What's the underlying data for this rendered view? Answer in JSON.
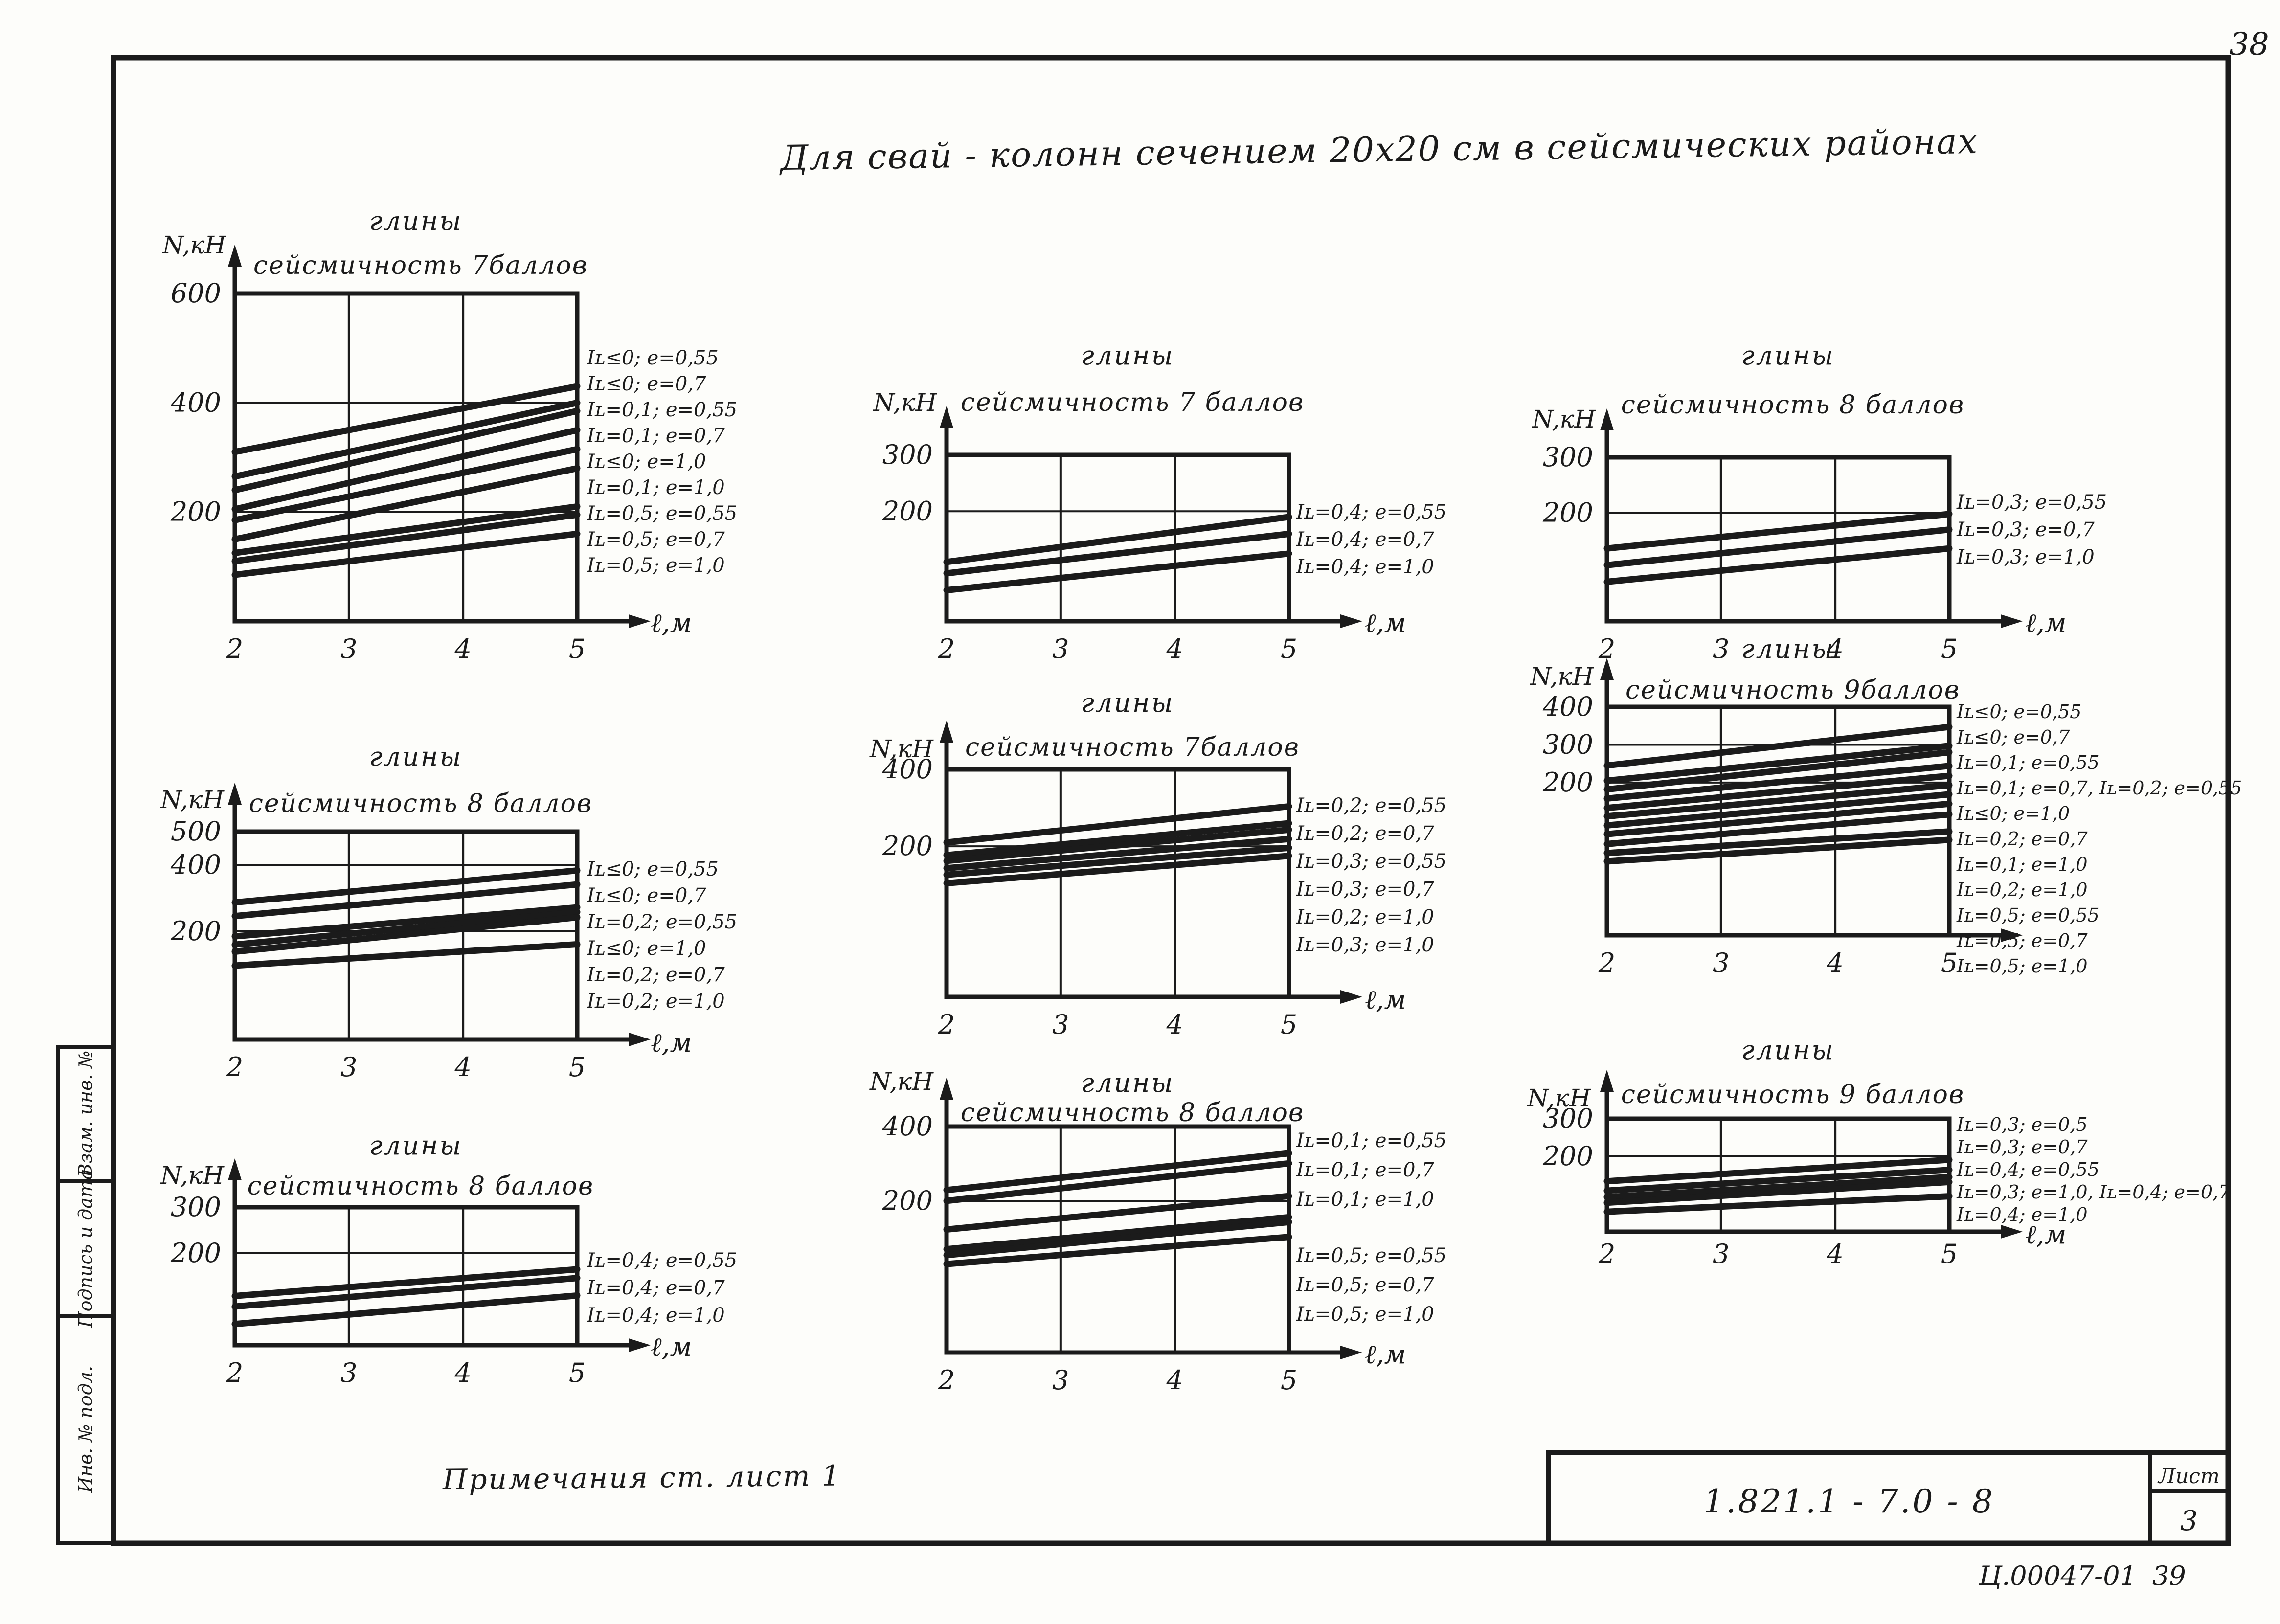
{
  "colors": {
    "ink": "#1b1b1b",
    "paper": "#fdfdfa"
  },
  "page": {
    "page_number": "38",
    "title": "Для свай - колонн сечением 20х20 см в сейсмических районах",
    "note": "Примечания  ст. лист 1",
    "sidebar": [
      "Взам. инв. №",
      "Подпись и дата",
      "Инв. № подл."
    ],
    "stamp": {
      "doc_number": "1.821.1 - 7.0 - 8",
      "sheet_label": "Лист",
      "sheet_number": "3"
    },
    "footer_code": "Ц.00047-01",
    "footer_page": "39"
  },
  "chart_data": [
    {
      "position": "top-left",
      "type": "line",
      "title": "глины",
      "subtitle": "сейсмичность 7баллов",
      "ylabel": "N,кН",
      "xlabel": "ℓ,м",
      "x_ticks": [
        2,
        3,
        4,
        5
      ],
      "y_ticks": [
        600,
        400,
        200
      ],
      "xlim": [
        2,
        5
      ],
      "ylim": [
        0,
        600
      ],
      "grid": true,
      "legend_position": "right",
      "series": [
        {
          "label": "Iʟ≤0; е=0,55",
          "x": [
            2,
            5
          ],
          "y": [
            310,
            430
          ]
        },
        {
          "label": "Iʟ≤0; е=0,7",
          "x": [
            2,
            5
          ],
          "y": [
            265,
            400
          ]
        },
        {
          "label": "Iʟ=0,1; е=0,55",
          "x": [
            2,
            5
          ],
          "y": [
            240,
            385
          ]
        },
        {
          "label": "Iʟ=0,1; е=0,7",
          "x": [
            2,
            5
          ],
          "y": [
            205,
            350
          ]
        },
        {
          "label": "Iʟ≤0; е=1,0",
          "x": [
            2,
            5
          ],
          "y": [
            185,
            315
          ]
        },
        {
          "label": "Iʟ=0,1; е=1,0",
          "x": [
            2,
            5
          ],
          "y": [
            150,
            280
          ]
        },
        {
          "label": "Iʟ=0,5; е=0,55",
          "x": [
            2,
            5
          ],
          "y": [
            125,
            210
          ]
        },
        {
          "label": "Iʟ=0,5; е=0,7",
          "x": [
            2,
            5
          ],
          "y": [
            110,
            195
          ]
        },
        {
          "label": "Iʟ=0,5; е=1,0",
          "x": [
            2,
            5
          ],
          "y": [
            85,
            160
          ]
        }
      ]
    },
    {
      "position": "top-middle",
      "type": "line",
      "title": "глины",
      "subtitle": "сейсмичность 7 баллов",
      "ylabel": "N,кН",
      "xlabel": "ℓ,м",
      "x_ticks": [
        2,
        3,
        4,
        5
      ],
      "y_ticks": [
        300,
        200
      ],
      "xlim": [
        2,
        5
      ],
      "ylim": [
        5,
        300
      ],
      "grid": true,
      "legend_position": "right",
      "series": [
        {
          "label": "Iʟ=0,4; е=0,55",
          "x": [
            2,
            5
          ],
          "y": [
            110,
            190
          ]
        },
        {
          "label": "Iʟ=0,4; е=0,7",
          "x": [
            2,
            5
          ],
          "y": [
            90,
            160
          ]
        },
        {
          "label": "Iʟ=0,4; е=1,0",
          "x": [
            2,
            5
          ],
          "y": [
            60,
            125
          ]
        }
      ]
    },
    {
      "position": "top-right",
      "type": "line",
      "title": "глины",
      "subtitle": "сейсмичность 8 баллов",
      "ylabel": "N,кН",
      "xlabel": "ℓ,м",
      "x_ticks": [
        2,
        3,
        4,
        5
      ],
      "y_ticks": [
        300,
        200
      ],
      "xlim": [
        2,
        5
      ],
      "ylim": [
        5,
        300
      ],
      "grid": true,
      "legend_position": "right",
      "series": [
        {
          "label": "Iʟ=0,3; е=0,55",
          "x": [
            2,
            5
          ],
          "y": [
            136,
            198
          ]
        },
        {
          "label": "Iʟ=0,3; е=0,7",
          "x": [
            2,
            5
          ],
          "y": [
            106,
            170
          ]
        },
        {
          "label": "Iʟ=0,3; е=1,0",
          "x": [
            2,
            5
          ],
          "y": [
            76,
            136
          ]
        }
      ]
    },
    {
      "position": "middle-left",
      "type": "line",
      "title": "глины",
      "subtitle": "сейсмичность 8 баллов",
      "ylabel": "N,кН",
      "xlabel": "ℓ,м",
      "x_ticks": [
        2,
        3,
        4,
        5
      ],
      "y_ticks": [
        500,
        400,
        200
      ],
      "xlim": [
        2,
        5
      ],
      "ylim": [
        -125,
        500
      ],
      "grid": true,
      "legend_position": "right",
      "series": [
        {
          "label": "Iʟ≤0; е=0,55",
          "x": [
            2,
            5
          ],
          "y": [
            287,
            383
          ]
        },
        {
          "label": "Iʟ≤0; е=0,7",
          "x": [
            2,
            5
          ],
          "y": [
            246,
            341
          ]
        },
        {
          "label": "Iʟ=0,2; е=0,55",
          "x": [
            2,
            5
          ],
          "y": [
            185,
            272
          ]
        },
        {
          "label": "Iʟ≤0; е=1,0",
          "x": [
            2,
            5
          ],
          "y": [
            160,
            258
          ]
        },
        {
          "label": "Iʟ=0,2; е=0,7",
          "x": [
            2,
            5
          ],
          "y": [
            139,
            242
          ]
        },
        {
          "label": "Iʟ=0,2; е=1,0",
          "x": [
            2,
            5
          ],
          "y": [
            97,
            161
          ]
        }
      ]
    },
    {
      "position": "center",
      "type": "line",
      "title": "глины",
      "subtitle": "сейсмичность 7баллов",
      "ylabel": "N,кН",
      "xlabel": "ℓ,м",
      "x_ticks": [
        2,
        3,
        4,
        5
      ],
      "y_ticks": [
        400,
        200
      ],
      "xlim": [
        2,
        5
      ],
      "ylim": [
        -192,
        400
      ],
      "grid": true,
      "legend_position": "right",
      "series": [
        {
          "label": "Iʟ=0,2; е=0,55",
          "x": [
            2,
            5
          ],
          "y": [
            210,
            304
          ]
        },
        {
          "label": "Iʟ=0,2; е=0,7",
          "x": [
            2,
            5
          ],
          "y": [
            177,
            260
          ]
        },
        {
          "label": "Iʟ=0,3; е=0,55",
          "x": [
            2,
            5
          ],
          "y": [
            162,
            243
          ]
        },
        {
          "label": "Iʟ=0,3; е=0,7",
          "x": [
            2,
            5
          ],
          "y": [
            143,
            219
          ]
        },
        {
          "label": "Iʟ=0,2; е=1,0",
          "x": [
            2,
            5
          ],
          "y": [
            126,
            196
          ]
        },
        {
          "label": "Iʟ=0,3; е=1,0",
          "x": [
            2,
            5
          ],
          "y": [
            104,
            175
          ]
        }
      ]
    },
    {
      "position": "middle-right",
      "type": "line",
      "title": "глины",
      "subtitle": "сейсмичность 9баллов",
      "ylabel": "N,кН",
      "xlabel": "",
      "x_ticks": [
        2,
        3,
        4,
        5
      ],
      "y_ticks": [
        400,
        300,
        200
      ],
      "xlim": [
        2,
        5
      ],
      "ylim": [
        -203,
        400
      ],
      "grid": true,
      "legend_position": "right",
      "series": [
        {
          "label": "Iʟ≤0; е=0,55",
          "x": [
            2,
            5
          ],
          "y": [
            245,
            347
          ]
        },
        {
          "label": "Iʟ≤0; е=0,7",
          "x": [
            2,
            5
          ],
          "y": [
            205,
            297
          ]
        },
        {
          "label": "Iʟ=0,1; е=0,55",
          "x": [
            2,
            5
          ],
          "y": [
            182,
            280
          ]
        },
        {
          "label": "Iʟ=0,1; е=0,7, Iʟ=0,2; е=0,55",
          "x": [
            2,
            5
          ],
          "y": [
            158,
            244
          ]
        },
        {
          "label": "Iʟ≤0; е=1,0",
          "x": [
            2,
            5
          ],
          "y": [
            133,
            218
          ]
        },
        {
          "label": "Iʟ=0,2; е=0,7",
          "x": [
            2,
            5
          ],
          "y": [
            111,
            193
          ]
        },
        {
          "label": "Iʟ=0,1; е=1,0",
          "x": [
            2,
            5
          ],
          "y": [
            87,
            169
          ]
        },
        {
          "label": "Iʟ=0,2; е=1,0",
          "x": [
            2,
            5
          ],
          "y": [
            64,
            144
          ]
        },
        {
          "label": "Iʟ=0,5; е=0,55",
          "x": [
            2,
            5
          ],
          "y": [
            38,
            116
          ]
        },
        {
          "label": "Iʟ=0,5; е=0,7",
          "x": [
            2,
            5
          ],
          "y": [
            14,
            71
          ]
        },
        {
          "label": "Iʟ=0,5; е=1,0",
          "x": [
            2,
            5
          ],
          "y": [
            -8,
            49
          ]
        }
      ]
    },
    {
      "position": "bottom-left",
      "type": "line",
      "title": "глины",
      "subtitle": "сейстичность 8 баллов",
      "ylabel": "N,кН",
      "xlabel": "ℓ,м",
      "x_ticks": [
        2,
        3,
        4,
        5
      ],
      "y_ticks": [
        300,
        200
      ],
      "xlim": [
        2,
        5
      ],
      "ylim": [
        0,
        300
      ],
      "grid": true,
      "legend_position": "right",
      "series": [
        {
          "label": "Iʟ=0,4; е=0,55",
          "x": [
            2,
            5
          ],
          "y": [
            107,
            165
          ]
        },
        {
          "label": "Iʟ=0,4; е=0,7",
          "x": [
            2,
            5
          ],
          "y": [
            84,
            146
          ]
        },
        {
          "label": "Iʟ=0,4; е=1,0",
          "x": [
            2,
            5
          ],
          "y": [
            46,
            108
          ]
        }
      ]
    },
    {
      "position": "bottom-middle",
      "type": "line",
      "title": "глины",
      "subtitle": "сейсмичность 8 баллов",
      "ylabel": "N,кН",
      "xlabel": "ℓ,м",
      "x_ticks": [
        2,
        3,
        4,
        5
      ],
      "y_ticks": [
        400,
        200
      ],
      "xlim": [
        2,
        5
      ],
      "ylim": [
        -208,
        400
      ],
      "grid": true,
      "legend_position": "right",
      "series": [
        {
          "label": "Iʟ=0,1; е=0,55",
          "x": [
            2,
            5
          ],
          "y": [
            229,
            328
          ]
        },
        {
          "label": "Iʟ=0,1; е=0,7",
          "x": [
            2,
            5
          ],
          "y": [
            200,
            301
          ]
        },
        {
          "label": "Iʟ=0,1; е=1,0",
          "x": [
            2,
            5
          ],
          "y": [
            123,
            213
          ]
        },
        {
          "label": "Iʟ=0,5; е=0,55",
          "x": [
            2,
            5
          ],
          "y": [
            70,
            156
          ]
        },
        {
          "label": "Iʟ=0,5; е=0,7",
          "x": [
            2,
            5
          ],
          "y": [
            54,
            143
          ]
        },
        {
          "label": "Iʟ=0,5; е=1,0",
          "x": [
            2,
            5
          ],
          "y": [
            30,
            103
          ]
        }
      ]
    },
    {
      "position": "bottom-right",
      "type": "line",
      "title": "глины",
      "subtitle": "сейсмичность 9 баллов",
      "ylabel": "N,кН",
      "xlabel": "ℓ,м",
      "x_ticks": [
        2,
        3,
        4,
        5
      ],
      "y_ticks": [
        300,
        200
      ],
      "xlim": [
        2,
        5
      ],
      "ylim": [
        0,
        300
      ],
      "grid": true,
      "legend_position": "right",
      "series": [
        {
          "label": "Iʟ=0,3; е=0,5",
          "x": [
            2,
            5
          ],
          "y": [
            134,
            191
          ]
        },
        {
          "label": "Iʟ=0,3; е=0,7",
          "x": [
            2,
            5
          ],
          "y": [
            109,
            164
          ]
        },
        {
          "label": "Iʟ=0,4; е=0,55",
          "x": [
            2,
            5
          ],
          "y": [
            92,
            145
          ]
        },
        {
          "label": "Iʟ=0,3; е=1,0, Iʟ=0,4; е=0,7",
          "x": [
            2,
            5
          ],
          "y": [
            77,
            132
          ]
        },
        {
          "label": "Iʟ=0,4; е=1,0",
          "x": [
            2,
            5
          ],
          "y": [
            53,
            94
          ]
        }
      ]
    }
  ]
}
